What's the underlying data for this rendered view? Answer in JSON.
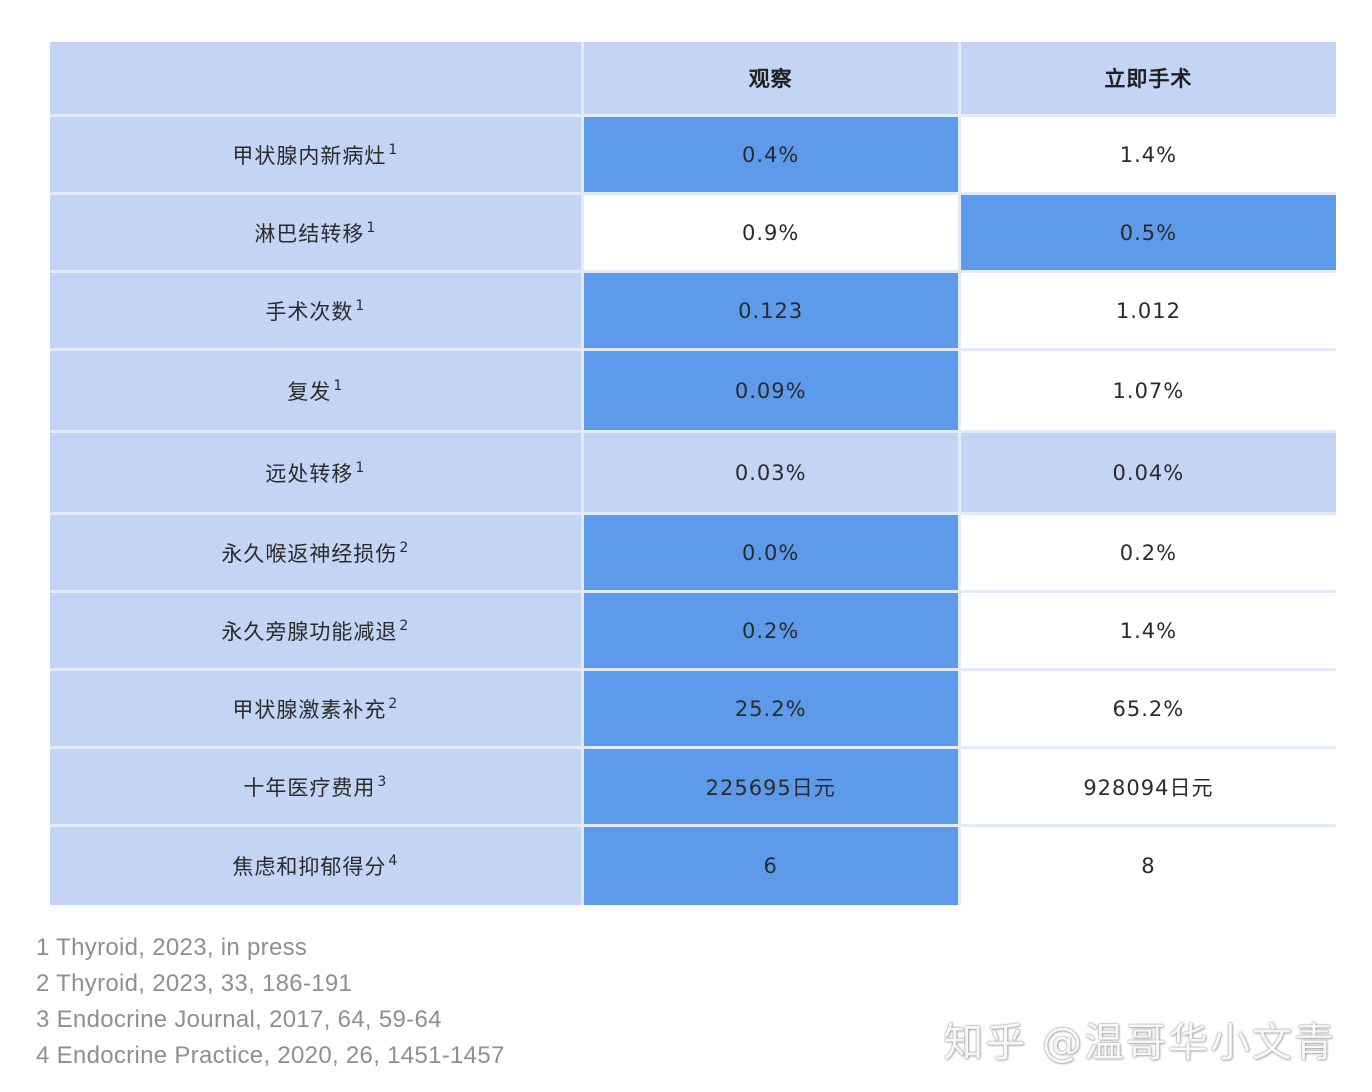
{
  "table": {
    "headers": [
      "",
      "观察",
      "立即手术"
    ],
    "rows": [
      {
        "label": "甲状腺内新病灶",
        "ref": "1",
        "observe": "0.4%",
        "surgery": "1.4%",
        "observe_fill": "dark",
        "surgery_fill": "white"
      },
      {
        "label": "淋巴结转移",
        "ref": "1",
        "observe": "0.9%",
        "surgery": "0.5%",
        "observe_fill": "white",
        "surgery_fill": "dark"
      },
      {
        "label": "手术次数",
        "ref": "1",
        "observe": "0.123",
        "surgery": "1.012",
        "observe_fill": "dark",
        "surgery_fill": "white"
      },
      {
        "label": "复发",
        "ref": "1",
        "observe": "0.09%",
        "surgery": "1.07%",
        "observe_fill": "dark",
        "surgery_fill": "white"
      },
      {
        "label": "远处转移",
        "ref": "1",
        "observe": "0.03%",
        "surgery": "0.04%",
        "observe_fill": "light",
        "surgery_fill": "light"
      },
      {
        "label": "永久喉返神经损伤",
        "ref": "2",
        "observe": "0.0%",
        "surgery": "0.2%",
        "observe_fill": "dark",
        "surgery_fill": "white"
      },
      {
        "label": "永久旁腺功能减退",
        "ref": "2",
        "observe": "0.2%",
        "surgery": "1.4%",
        "observe_fill": "dark",
        "surgery_fill": "white"
      },
      {
        "label": "甲状腺激素补充",
        "ref": "2",
        "observe": "25.2%",
        "surgery": "65.2%",
        "observe_fill": "dark",
        "surgery_fill": "white"
      },
      {
        "label": "十年医疗费用",
        "ref": "3",
        "observe": "225695日元",
        "surgery": "928094日元",
        "observe_fill": "dark",
        "surgery_fill": "white"
      },
      {
        "label": "焦虑和抑郁得分",
        "ref": "4",
        "observe": "6",
        "surgery": "8",
        "observe_fill": "dark",
        "surgery_fill": "white"
      }
    ]
  },
  "footnotes": [
    "1 Thyroid, 2023, in press",
    "2 Thyroid, 2023, 33, 186-191",
    "3 Endocrine Journal, 2017, 64, 59-64",
    "4 Endocrine Practice, 2020, 26, 1451-1457"
  ],
  "watermark": "知乎 @温哥华小文青",
  "colors": {
    "light": "#c3d4f5",
    "dark": "#5d9bea",
    "white": "#ffffff",
    "footnote_text": "#8f8f8f"
  }
}
